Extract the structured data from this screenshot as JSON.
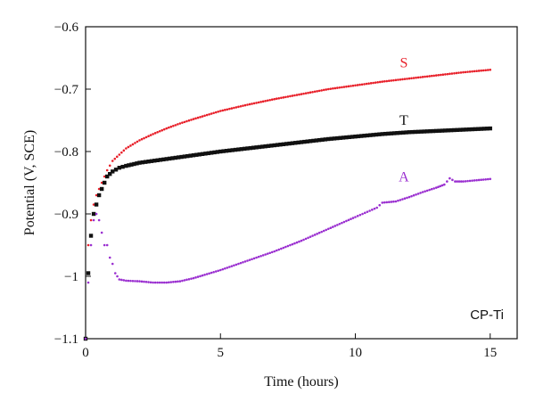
{
  "chart_data": {
    "type": "scatter",
    "xlabel": "Time (hours)",
    "ylabel": "Potential (V, SCE)",
    "xlim": [
      0,
      16
    ],
    "ylim": [
      -1.1,
      -0.6
    ],
    "xticks": [
      0,
      5,
      10,
      15
    ],
    "yticks": [
      -1.1,
      -1.0,
      -0.9,
      -0.8,
      -0.7,
      -0.6
    ],
    "xtick_labels": [
      "0",
      "5",
      "10",
      "15"
    ],
    "ytick_labels": [
      "−1.1",
      "−1",
      "−0.9",
      "−0.8",
      "−0.7",
      "−0.6"
    ],
    "grid": false,
    "annotation": "CP-Ti",
    "series": [
      {
        "name": "S",
        "color": "#e8202a",
        "marker": "small-dot",
        "x": [
          0.0,
          0.1,
          0.2,
          0.3,
          0.4,
          0.5,
          0.6,
          0.7,
          0.8,
          1.0,
          1.25,
          1.5,
          2.0,
          2.5,
          3.0,
          3.5,
          4.0,
          5.0,
          6.0,
          7.0,
          8.0,
          9.0,
          10.0,
          11.0,
          12.0,
          13.0,
          14.0,
          15.0
        ],
        "y": [
          -1.1,
          -0.95,
          -0.91,
          -0.885,
          -0.87,
          -0.86,
          -0.85,
          -0.84,
          -0.83,
          -0.815,
          -0.805,
          -0.795,
          -0.782,
          -0.772,
          -0.763,
          -0.755,
          -0.748,
          -0.735,
          -0.725,
          -0.716,
          -0.708,
          -0.7,
          -0.694,
          -0.688,
          -0.683,
          -0.678,
          -0.673,
          -0.669
        ]
      },
      {
        "name": "T",
        "color": "#111111",
        "marker": "square",
        "x": [
          0.0,
          0.1,
          0.2,
          0.3,
          0.4,
          0.5,
          0.6,
          0.7,
          0.8,
          1.0,
          1.25,
          1.5,
          2.0,
          3.0,
          4.0,
          5.0,
          6.0,
          7.0,
          8.0,
          9.0,
          10.0,
          11.0,
          12.0,
          13.0,
          14.0,
          15.0
        ],
        "y": [
          -1.1,
          -0.995,
          -0.935,
          -0.9,
          -0.885,
          -0.87,
          -0.86,
          -0.85,
          -0.84,
          -0.832,
          -0.826,
          -0.823,
          -0.818,
          -0.812,
          -0.806,
          -0.8,
          -0.795,
          -0.79,
          -0.785,
          -0.78,
          -0.776,
          -0.772,
          -0.769,
          -0.767,
          -0.765,
          -0.763
        ]
      },
      {
        "name": "A",
        "color": "#9a2fd0",
        "marker": "small-dot",
        "x": [
          0.0,
          0.1,
          0.2,
          0.3,
          0.4,
          0.5,
          0.6,
          0.7,
          0.8,
          0.9,
          1.0,
          1.1,
          1.25,
          1.5,
          2.0,
          2.5,
          3.0,
          3.5,
          4.0,
          5.0,
          6.0,
          7.0,
          8.0,
          9.0,
          10.0,
          10.8,
          11.0,
          11.5,
          12.0,
          12.5,
          13.0,
          13.3,
          13.5,
          13.7,
          14.0,
          14.5,
          15.0
        ],
        "y": [
          -1.1,
          -1.01,
          -0.95,
          -0.91,
          -0.9,
          -0.91,
          -0.93,
          -0.95,
          -0.95,
          -0.97,
          -0.98,
          -0.995,
          -1.005,
          -1.007,
          -1.008,
          -1.01,
          -1.01,
          -1.008,
          -1.003,
          -0.99,
          -0.975,
          -0.96,
          -0.943,
          -0.924,
          -0.905,
          -0.89,
          -0.882,
          -0.88,
          -0.873,
          -0.865,
          -0.858,
          -0.853,
          -0.843,
          -0.848,
          -0.848,
          -0.846,
          -0.844
        ]
      }
    ],
    "labels": [
      {
        "text": "S",
        "x": 11.8,
        "y": -0.665,
        "color": "#e8202a"
      },
      {
        "text": "T",
        "x": 11.8,
        "y": -0.757,
        "color": "#111111"
      },
      {
        "text": "A",
        "x": 11.8,
        "y": -0.848,
        "color": "#9a2fd0"
      }
    ]
  }
}
